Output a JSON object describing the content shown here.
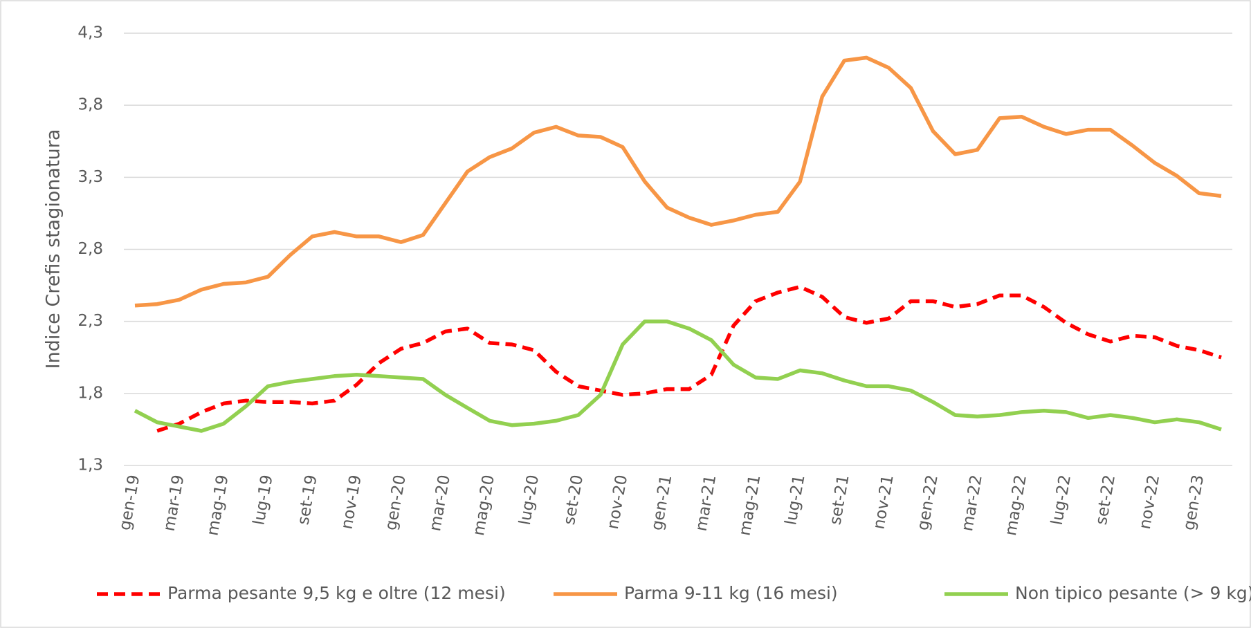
{
  "chart_data": {
    "type": "line",
    "y_label": "Indice Crefis stagionatura",
    "categories": [
      "gen-19",
      null,
      "mar-19",
      null,
      "mag-19",
      null,
      "lug-19",
      null,
      "set-19",
      null,
      "nov-19",
      null,
      "gen-20",
      null,
      "mar-20",
      null,
      "mag-20",
      null,
      "lug-20",
      null,
      "set-20",
      null,
      "nov-20",
      null,
      "gen-21",
      null,
      "mar-21",
      null,
      "mag-21",
      null,
      "lug-21",
      null,
      "set-21",
      null,
      "nov-21",
      null,
      "gen-22",
      null,
      "mar-22",
      null,
      "mag-22",
      null,
      "lug-22",
      null,
      "set-22",
      null,
      "nov-22",
      null,
      "gen-23",
      null
    ],
    "series": [
      {
        "name": "Parma pesante 9,5 kg e oltre (12 mesi)",
        "color": "#ff0000",
        "dashed": true,
        "values": [
          null,
          1.54,
          1.59,
          1.67,
          1.73,
          1.75,
          1.74,
          1.74,
          1.73,
          1.75,
          1.86,
          2.01,
          2.11,
          2.15,
          2.23,
          2.25,
          2.15,
          2.14,
          2.1,
          1.95,
          1.85,
          1.82,
          1.79,
          1.8,
          1.83,
          1.83,
          1.93,
          2.27,
          2.44,
          2.5,
          2.54,
          2.47,
          2.33,
          2.29,
          2.32,
          2.44,
          2.44,
          2.4,
          2.42,
          2.48,
          2.48,
          2.4,
          2.29,
          2.21,
          2.16,
          2.2,
          2.19,
          2.13,
          2.1,
          2.05
        ]
      },
      {
        "name": "Parma 9-11 kg (16 mesi)",
        "color": "#f79646",
        "dashed": false,
        "values": [
          2.41,
          2.42,
          2.45,
          2.52,
          2.56,
          2.57,
          2.61,
          2.76,
          2.89,
          2.92,
          2.89,
          2.89,
          2.85,
          2.9,
          3.12,
          3.34,
          3.44,
          3.5,
          3.61,
          3.65,
          3.59,
          3.58,
          3.51,
          3.27,
          3.09,
          3.02,
          2.97,
          3.0,
          3.04,
          3.06,
          3.27,
          3.86,
          4.11,
          4.13,
          4.06,
          3.92,
          3.62,
          3.46,
          3.49,
          3.71,
          3.72,
          3.65,
          3.6,
          3.63,
          3.63,
          3.52,
          3.4,
          3.31,
          3.19,
          3.17
        ]
      },
      {
        "name": "Non tipico pesante (> 9 kg)",
        "color": "#92d050",
        "dashed": false,
        "values": [
          1.68,
          1.6,
          1.57,
          1.54,
          1.59,
          1.71,
          1.85,
          1.88,
          1.9,
          1.92,
          1.93,
          1.92,
          1.91,
          1.9,
          1.79,
          1.7,
          1.61,
          1.58,
          1.59,
          1.61,
          1.65,
          1.79,
          2.14,
          2.3,
          2.3,
          2.25,
          2.17,
          2.0,
          1.91,
          1.9,
          1.96,
          1.94,
          1.89,
          1.85,
          1.85,
          1.82,
          1.74,
          1.65,
          1.64,
          1.65,
          1.67,
          1.68,
          1.67,
          1.63,
          1.65,
          1.63,
          1.6,
          1.62,
          1.6,
          1.55
        ]
      }
    ],
    "ylim": [
      1.3,
      4.3
    ],
    "yticks": [
      {
        "value": 1.3,
        "label": "1,3"
      },
      {
        "value": 1.8,
        "label": "1,8"
      },
      {
        "value": 2.3,
        "label": "2,3"
      },
      {
        "value": 2.8,
        "label": "2,8"
      },
      {
        "value": 3.3,
        "label": "3,3"
      },
      {
        "value": 3.8,
        "label": "3,8"
      },
      {
        "value": 4.3,
        "label": "4,3"
      }
    ],
    "grid": true,
    "legend": "bottom"
  }
}
